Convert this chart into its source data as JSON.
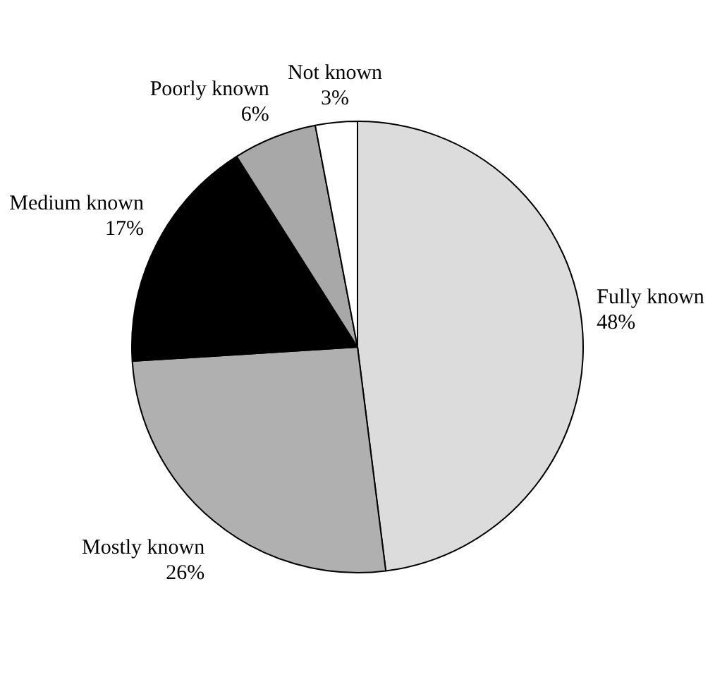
{
  "chart_data": {
    "type": "pie",
    "categories": [
      "Fully known",
      "Mostly known",
      "Medium known",
      "Poorly known",
      "Not known"
    ],
    "values": [
      48,
      26,
      17,
      6,
      3
    ],
    "colors": [
      "#dcdcdc",
      "#b0b0b0",
      "#000000",
      "#a8a8a8",
      "#ffffff"
    ],
    "value_labels": [
      "48%",
      "26%",
      "17%",
      "6%",
      "3%"
    ],
    "legend": false
  }
}
